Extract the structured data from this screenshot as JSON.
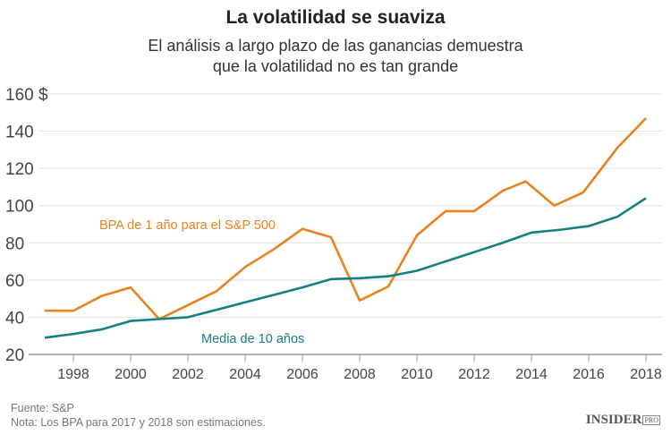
{
  "title": "La volatilidad se suaviza",
  "subtitle_line1": "El análisis a largo plazo de las ganancias demuestra",
  "subtitle_line2": "que la volatilidad no es tan grande",
  "footer": {
    "source": "Fuente: S&P",
    "note": "Nota: Los BPA para 2017 y 2018 son estimaciones.",
    "logo": "INSIDER",
    "logo_badge": "PRO"
  },
  "chart_data": {
    "type": "line",
    "xlim": [
      1997,
      2018.4
    ],
    "ylim": [
      20,
      160
    ],
    "yticks": [
      20,
      40,
      60,
      80,
      100,
      120,
      140,
      160
    ],
    "ytick_labels": [
      "20",
      "40",
      "60",
      "80",
      "100",
      "120",
      "140",
      "160 $"
    ],
    "xticks": [
      1998,
      2000,
      2002,
      2004,
      2006,
      2008,
      2010,
      2012,
      2014,
      2016,
      2018
    ],
    "grid": true,
    "series": [
      {
        "name": "BPA de 1 año para el S&P 500",
        "color": "#e8811f",
        "x": [
          1997,
          1998,
          1999,
          2000,
          2001,
          2002,
          2003,
          2004,
          2005,
          2006,
          2007,
          2008,
          2009,
          2010,
          2011,
          2012,
          2013,
          2013.8,
          2014.8,
          2015.8,
          2017,
          2018
        ],
        "y": [
          43.5,
          43.5,
          51.5,
          56,
          39,
          46.5,
          54,
          67,
          76.5,
          87.5,
          83,
          49,
          56.5,
          84,
          97,
          97,
          108,
          113,
          100,
          107,
          131,
          147
        ]
      },
      {
        "name": "Media de 10 años",
        "color": "#167f80",
        "x": [
          1997,
          1998,
          1999,
          2000,
          2001,
          2002,
          2003,
          2004,
          2005,
          2006,
          2007,
          2008,
          2009,
          2010,
          2011,
          2012,
          2013,
          2014,
          2015,
          2016,
          2017,
          2018
        ],
        "y": [
          29,
          31,
          33.5,
          38,
          39,
          40,
          44,
          48,
          52,
          56,
          60.5,
          61,
          62,
          65,
          70,
          75,
          80,
          85.5,
          87,
          89,
          94,
          104
        ]
      }
    ]
  }
}
